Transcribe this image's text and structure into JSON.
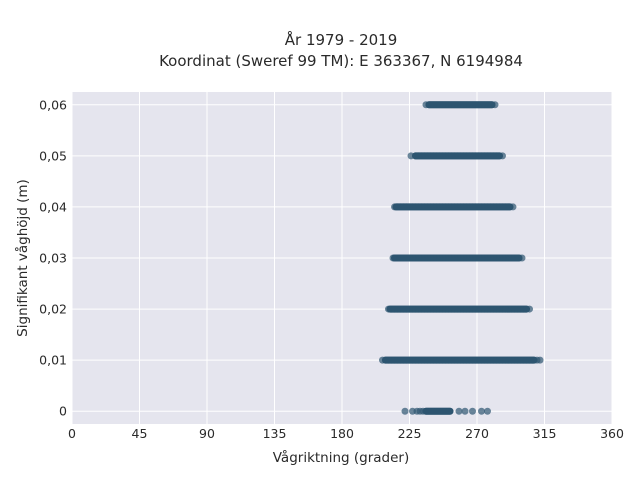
{
  "chart_data": {
    "type": "scatter",
    "title_line1": "År 1979 - 2019",
    "title_line2": "Koordinat (Sweref 99 TM): E 363367, N 6194984",
    "xlabel": "Vågriktning (grader)",
    "ylabel": "Signifikant våghöjd (m)",
    "xlim": [
      0,
      360
    ],
    "ylim": [
      -0.0025,
      0.0625
    ],
    "xticks": [
      0,
      45,
      90,
      135,
      180,
      225,
      270,
      315,
      360
    ],
    "xtick_labels": [
      "0",
      "45",
      "90",
      "135",
      "180",
      "225",
      "270",
      "315",
      "360"
    ],
    "yticks": [
      0,
      0.01,
      0.02,
      0.03,
      0.04,
      0.05,
      0.06
    ],
    "ytick_labels": [
      "0",
      "0,01",
      "0,02",
      "0,03",
      "0,04",
      "0,05",
      "0,06"
    ],
    "grid": true,
    "marker_color": "#2e5570",
    "background_color": "#e5e5ee",
    "series": [
      {
        "y": 0,
        "dense_x": [
          236,
          252
        ],
        "sparse_x": [
          222,
          227,
          230,
          232,
          234,
          258,
          262,
          267,
          273,
          277
        ]
      },
      {
        "y": 0.01,
        "dense_x": [
          209,
          308
        ],
        "sparse_x": [
          207,
          310,
          312
        ]
      },
      {
        "y": 0.02,
        "dense_x": [
          212,
          303
        ],
        "sparse_x": [
          211,
          305
        ]
      },
      {
        "y": 0.03,
        "dense_x": [
          215,
          298
        ],
        "sparse_x": [
          214,
          300
        ]
      },
      {
        "y": 0.04,
        "dense_x": [
          216,
          292
        ],
        "sparse_x": [
          215,
          294
        ]
      },
      {
        "y": 0.05,
        "dense_x": [
          229,
          285
        ],
        "sparse_x": [
          226,
          287
        ]
      },
      {
        "y": 0.06,
        "dense_x": [
          238,
          280
        ],
        "sparse_x": [
          236,
          282
        ]
      }
    ]
  }
}
